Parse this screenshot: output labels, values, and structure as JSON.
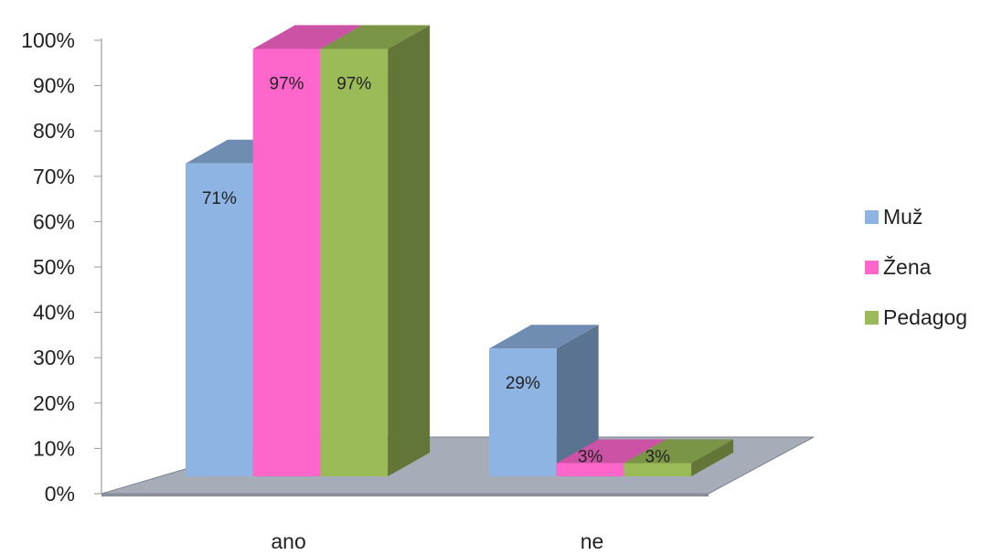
{
  "chart_data": {
    "type": "bar",
    "categories": [
      "ano",
      "ne"
    ],
    "series": [
      {
        "name": "Muž",
        "values": [
          71,
          29
        ],
        "labels": [
          "71%",
          "29%"
        ],
        "color": "#8EB4E3",
        "side_color": "#5A7391",
        "top_color": "#6F8DB3"
      },
      {
        "name": "Žena",
        "values": [
          97,
          3
        ],
        "labels": [
          "97%",
          "3%"
        ],
        "color": "#FF66CC",
        "side_color": "#A3448A",
        "top_color": "#CC52A6"
      },
      {
        "name": "Pedagog",
        "values": [
          97,
          3
        ],
        "labels": [
          "97%",
          "3%"
        ],
        "color": "#9BBB59",
        "side_color": "#627638",
        "top_color": "#7B9546"
      }
    ],
    "y_ticks": [
      "0%",
      "10%",
      "20%",
      "30%",
      "40%",
      "50%",
      "60%",
      "70%",
      "80%",
      "90%",
      "100%"
    ],
    "ylim": [
      0,
      100
    ],
    "title": "",
    "xlabel": "",
    "ylabel": "",
    "grid": false,
    "three_d": true,
    "legend_position": "right",
    "floor_color": "#A6ACB8"
  }
}
